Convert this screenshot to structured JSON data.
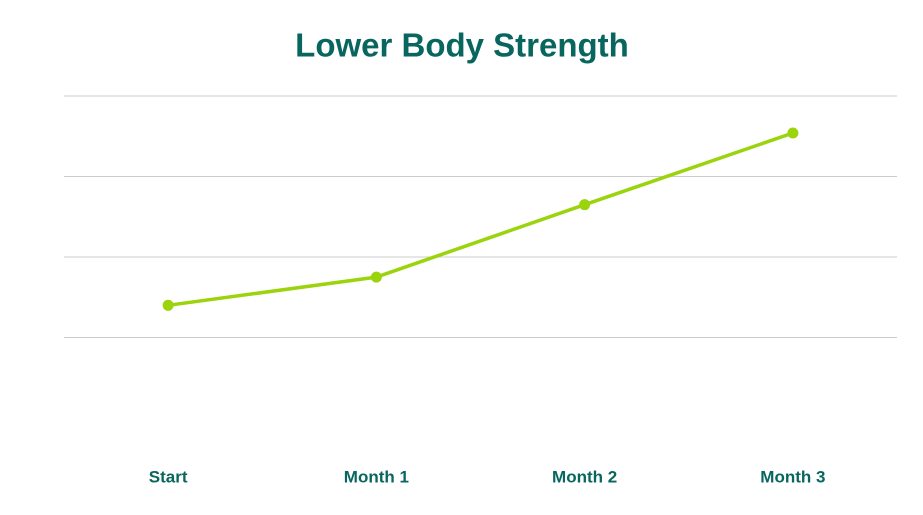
{
  "chart_data": {
    "type": "line",
    "title": "Lower Body Strength",
    "categories": [
      "Start",
      "Month 1",
      "Month 2",
      "Month 3"
    ],
    "values": [
      1.4,
      1.75,
      2.65,
      3.54
    ],
    "color": "#9bd30c",
    "ylim": [
      0,
      4
    ],
    "yticks": [
      1,
      2,
      3,
      4
    ],
    "grid": true
  }
}
